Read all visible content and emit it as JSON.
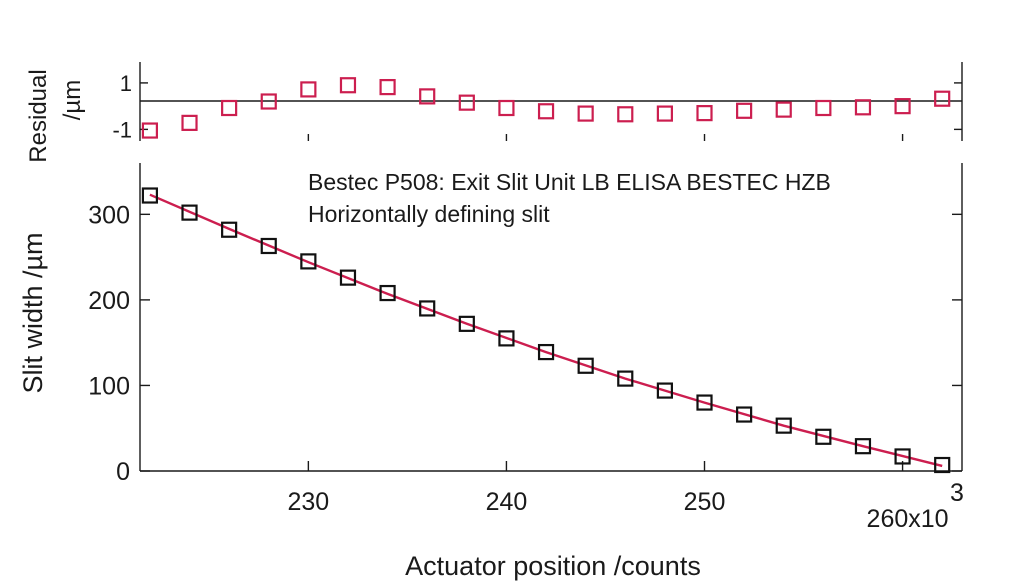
{
  "chart_data": [
    {
      "type": "scatter",
      "panel": "residual",
      "ylabel_line1": "Residual",
      "ylabel_line2": "/µm",
      "xlim": [
        221.5,
        263
      ],
      "ylim": [
        -1.5,
        1.9
      ],
      "yticks": [
        1,
        -1
      ],
      "ytick_labels": [
        "1",
        "-1"
      ],
      "zero_line": true,
      "marker_color": "#cc1e4f",
      "series": [
        {
          "x": [
            222,
            224,
            226,
            228,
            230,
            232,
            234,
            236,
            238,
            240,
            242,
            244,
            246,
            248,
            250,
            252,
            254,
            256,
            258,
            260,
            262
          ],
          "y": [
            -1.05,
            -0.72,
            -0.08,
            0.2,
            0.72,
            0.9,
            0.82,
            0.42,
            0.15,
            -0.08,
            -0.22,
            -0.32,
            -0.35,
            -0.32,
            -0.3,
            -0.2,
            -0.15,
            -0.08,
            -0.05,
            0.0,
            0.32
          ]
        }
      ]
    },
    {
      "type": "scatter",
      "panel": "main",
      "xlabel": "Actuator position /counts",
      "ylabel": "Slit width /µm",
      "xlim": [
        221.5,
        263
      ],
      "ylim": [
        0,
        360
      ],
      "xticks": [
        230,
        240,
        250,
        260
      ],
      "xtick_labels": [
        "230",
        "240",
        "250",
        "260x10"
      ],
      "xtick_exponent": "3",
      "yticks": [
        0,
        100,
        200,
        300
      ],
      "ytick_labels": [
        "0",
        "100",
        "200",
        "300"
      ],
      "annotation_line1": "Bestec P508: Exit Slit Unit LB ELISA BESTEC HZB",
      "annotation_line2": "Horizontally defining slit",
      "marker_color": "#111111",
      "fit_color": "#cc1e4f",
      "series": [
        {
          "x": [
            222,
            224,
            226,
            228,
            230,
            232,
            234,
            236,
            238,
            240,
            242,
            244,
            246,
            248,
            250,
            252,
            254,
            256,
            258,
            260,
            262
          ],
          "y": [
            322,
            302,
            282,
            263,
            245,
            226,
            208,
            190,
            172,
            155,
            139,
            123,
            108,
            94,
            80,
            66,
            53,
            40,
            29,
            17,
            7
          ]
        }
      ],
      "fit": {
        "x": [
          222,
          226,
          230,
          234,
          238,
          242,
          246,
          250,
          254,
          258,
          262
        ],
        "y": [
          323,
          283,
          244,
          207,
          172,
          139,
          108,
          80,
          53,
          29,
          6
        ]
      }
    }
  ]
}
